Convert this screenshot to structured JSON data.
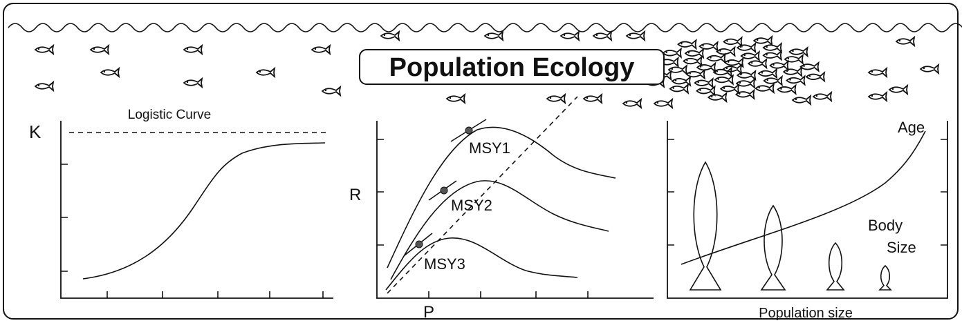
{
  "header": {
    "title": "Population Ecology"
  },
  "panels": [
    {
      "title": "Logistic Curve",
      "y_label": "K"
    },
    {
      "y_label": "R",
      "x_label": "P",
      "points": [
        "MSY1",
        "MSY2",
        "MSY3"
      ]
    },
    {
      "curve_label": "Age",
      "fish_labels": [
        "Body",
        "Size"
      ],
      "x_label": "Population size"
    }
  ]
}
